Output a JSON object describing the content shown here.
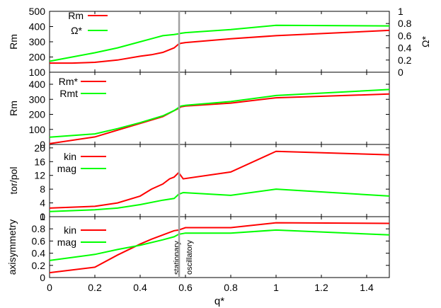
{
  "chart_data": {
    "type": "line",
    "xlabel": "q*",
    "xlim": [
      0,
      1.5
    ],
    "x_ticks": [
      "0",
      "0.2",
      "0.4",
      "0.6",
      "0.8",
      "1",
      "1.2",
      "1.4"
    ],
    "vline": {
      "x": 0.572,
      "color": "#a0a0a0"
    },
    "markers": [
      "stationary",
      "oscillatory"
    ],
    "panels": [
      {
        "id": "rm-omega",
        "ylabel": "Rm",
        "ylim": [
          100,
          500
        ],
        "y_ticks": [
          "100",
          "200",
          "300",
          "400",
          "500"
        ],
        "y2label": "Ω*",
        "y2lim": [
          0,
          1
        ],
        "y2_ticks": [
          "0",
          "0.2",
          "0.4",
          "0.6",
          "0.8",
          "1"
        ],
        "legend": [
          "Rm",
          "Ω*"
        ],
        "series": [
          {
            "name": "Rm",
            "color": "#ff0000",
            "axis": "left",
            "x": [
              0,
              0.1,
              0.2,
              0.3,
              0.4,
              0.45,
              0.5,
              0.55,
              0.57,
              0.58,
              0.6,
              0.8,
              1.0,
              1.5
            ],
            "y": [
              160,
              160,
              165,
              180,
              205,
              215,
              230,
              260,
              285,
              290,
              295,
              320,
              340,
              375
            ]
          },
          {
            "name": "Ω*",
            "color": "#00ff00",
            "axis": "right",
            "x": [
              0,
              0.1,
              0.2,
              0.3,
              0.4,
              0.45,
              0.5,
              0.55,
              0.57,
              0.58,
              0.6,
              0.8,
              1.0,
              1.5
            ],
            "y": [
              0.18,
              0.25,
              0.32,
              0.4,
              0.5,
              0.55,
              0.6,
              0.62,
              0.63,
              0.64,
              0.65,
              0.7,
              0.77,
              0.76
            ]
          }
        ]
      },
      {
        "id": "rm-crit",
        "ylabel": "Rm",
        "ylim": [
          0,
          480
        ],
        "y_ticks": [
          "0",
          "100",
          "200",
          "300",
          "400"
        ],
        "legend": [
          "Rm*",
          "Rmt"
        ],
        "series": [
          {
            "name": "Rm*",
            "color": "#ff0000",
            "x": [
              0,
              0.2,
              0.3,
              0.4,
              0.5,
              0.55,
              0.57,
              0.58,
              0.6,
              0.8,
              1.0,
              1.5
            ],
            "y": [
              5,
              50,
              95,
              140,
              185,
              225,
              240,
              250,
              255,
              275,
              310,
              335
            ]
          },
          {
            "name": "Rmt",
            "color": "#00ff00",
            "x": [
              0,
              0.2,
              0.3,
              0.4,
              0.5,
              0.55,
              0.57,
              0.58,
              0.6,
              0.8,
              1.0,
              1.5
            ],
            "y": [
              48,
              70,
              105,
              145,
              190,
              225,
              245,
              255,
              260,
              285,
              325,
              365
            ]
          }
        ]
      },
      {
        "id": "torpol",
        "ylabel": "tor/pol",
        "ylim": [
          0,
          21
        ],
        "y_ticks": [
          "0",
          "4",
          "8",
          "12",
          "16",
          "20"
        ],
        "legend": [
          "kin",
          "mag"
        ],
        "series": [
          {
            "name": "kin",
            "color": "#ff0000",
            "x": [
              0,
              0.2,
              0.3,
              0.4,
              0.45,
              0.5,
              0.53,
              0.55,
              0.57,
              0.59,
              0.8,
              1.0,
              1.5
            ],
            "y": [
              2.5,
              3,
              4,
              6,
              8,
              9.5,
              11,
              11.5,
              12.8,
              11,
              13,
              19,
              18
            ]
          },
          {
            "name": "mag",
            "color": "#00ff00",
            "x": [
              0,
              0.2,
              0.3,
              0.4,
              0.5,
              0.55,
              0.57,
              0.59,
              0.8,
              1.0,
              1.5
            ],
            "y": [
              1.5,
              2,
              2.5,
              3.5,
              4.8,
              5.3,
              6.5,
              7,
              6.2,
              8,
              6
            ]
          }
        ]
      },
      {
        "id": "axisym",
        "ylabel": "axisymmetry",
        "ylim": [
          0,
          1
        ],
        "y_ticks": [
          "0",
          "0.2",
          "0.4",
          "0.6",
          "0.8",
          "1"
        ],
        "legend": [
          "kin",
          "mag"
        ],
        "series": [
          {
            "name": "kin",
            "color": "#ff0000",
            "x": [
              0,
              0.2,
              0.3,
              0.4,
              0.45,
              0.5,
              0.55,
              0.57,
              0.6,
              0.8,
              1.0,
              1.5
            ],
            "y": [
              0.08,
              0.17,
              0.37,
              0.55,
              0.63,
              0.7,
              0.77,
              0.78,
              0.82,
              0.82,
              0.9,
              0.89
            ]
          },
          {
            "name": "mag",
            "color": "#00ff00",
            "x": [
              0,
              0.2,
              0.3,
              0.4,
              0.5,
              0.55,
              0.57,
              0.6,
              0.8,
              1.0,
              1.5
            ],
            "y": [
              0.28,
              0.38,
              0.46,
              0.53,
              0.62,
              0.67,
              0.71,
              0.73,
              0.73,
              0.78,
              0.7
            ]
          }
        ]
      }
    ]
  }
}
